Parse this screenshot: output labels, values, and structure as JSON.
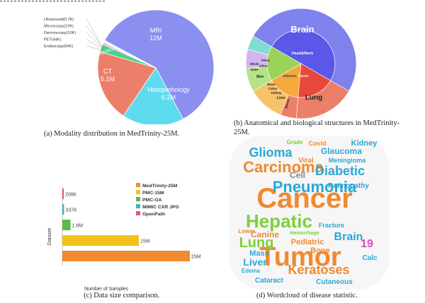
{
  "captions": {
    "a": "(a) Modality distribution in MedTrinity-25M.",
    "b": "(b) Anatomical and biological structures in MedTrinity-25M.",
    "c": "(c) Data size comparison.",
    "d": "(d) Wordcloud of disease statistic."
  },
  "chart_data": [
    {
      "type": "pie",
      "slices": [
        {
          "label": "MRI",
          "value_label": "12M",
          "value": 12.0,
          "color": "#8a8ff0"
        },
        {
          "label": "Histopathology",
          "value_label": "6.2M",
          "value": 6.2,
          "color": "#5fdbf0"
        },
        {
          "label": "CT",
          "value_label": "5.1M",
          "value": 5.1,
          "color": "#ec7f6a"
        },
        {
          "label": "X-Ray(630K)",
          "value_label": "",
          "value": 0.63,
          "color": "#4fcf8f"
        },
        {
          "label": "Endoscopy(64K)",
          "value_label": "",
          "value": 0.064,
          "color": "#c78fe0"
        },
        {
          "label": "PET(44K)",
          "value_label": "",
          "value": 0.044,
          "color": "#f3b06c"
        },
        {
          "label": "Dermoscopy(10K)",
          "value_label": "",
          "value": 0.01,
          "color": "#f6c2d2"
        },
        {
          "label": "Microscopy(10K)",
          "value_label": "",
          "value": 0.01,
          "color": "#d08bd8"
        },
        {
          "label": "Ultrasound(0.7K)",
          "value_label": "",
          "value": 0.0007,
          "color": "#f3ee88"
        }
      ]
    },
    {
      "type": "sunburst",
      "outer": [
        {
          "label": "Brain",
          "color": "#7f82ec"
        },
        {
          "label": "Lung",
          "color": "#ec7f6a"
        },
        {
          "label": "Breast",
          "color": "#ec7f6a"
        },
        {
          "label": "Liver",
          "color": "#f6c36a"
        },
        {
          "label": "Kidney",
          "color": "#f6c36a"
        },
        {
          "label": "Colon",
          "color": "#f6c36a"
        },
        {
          "label": "Bone",
          "color": "#f6c36a"
        },
        {
          "label": "Skin",
          "color": "#b6e38a"
        },
        {
          "label": "Other",
          "color": "#b6e38a"
        },
        {
          "label": "Pelvic",
          "color": "#d3b6f0"
        },
        {
          "label": "Spine",
          "color": "#d3b6f0"
        },
        {
          "label": "Whole",
          "color": "#7fdcd0"
        }
      ],
      "inner": [
        {
          "label": "Head&Neck",
          "color": "#5a58e8"
        },
        {
          "label": "Thorax",
          "color": "#e8483a"
        },
        {
          "label": "Abdomen",
          "color": "#f6a83a"
        }
      ]
    },
    {
      "type": "bar",
      "orientation": "horizontal",
      "ylabel": "Dataset",
      "xlabel": "Number of Samples",
      "categories": [
        "OpenPath",
        "MIMIC CXR JPG",
        "PMC-OA",
        "PMC-15M",
        "MedTrinity-25M"
      ],
      "values": [
        0.208,
        0.337,
        1.6,
        15,
        25
      ],
      "labels": [
        "208K",
        "337K",
        "1.6M",
        "15M",
        "25M"
      ],
      "colors": [
        "#e0606a",
        "#3fb8b0",
        "#5cb84a",
        "#f2c21a",
        "#f0892f"
      ],
      "legend": [
        "MedTrinity-25M",
        "PMC-15M",
        "PMC-OA",
        "MIMIC CXR JPG",
        "OpenPath"
      ],
      "legend_colors": [
        "#f0892f",
        "#f2c21a",
        "#5cb84a",
        "#3fb8b0",
        "#e0606a"
      ]
    }
  ],
  "wordcloud": [
    {
      "t": "Cancer",
      "c": "#f0892f"
    },
    {
      "t": "Tumor",
      "c": "#f0892f"
    },
    {
      "t": "Hepatic",
      "c": "#7fcf3a"
    },
    {
      "t": "Pneumonia",
      "c": "#29a8d8"
    },
    {
      "t": "Carcinoma",
      "c": "#f0892f"
    },
    {
      "t": "Diabetic",
      "c": "#29a8d8"
    },
    {
      "t": "Lung",
      "c": "#7fcf3a"
    },
    {
      "t": "Keratoses",
      "c": "#f0892f"
    },
    {
      "t": "Glioma",
      "c": "#29a8d8"
    },
    {
      "t": "Brain",
      "c": "#29a8d8"
    },
    {
      "t": "Liver",
      "c": "#29a8d8"
    },
    {
      "t": "Cell",
      "c": "#888888"
    },
    {
      "t": "Glaucoma",
      "c": "#29a8d8"
    },
    {
      "t": "Kidney",
      "c": "#29a8d8"
    },
    {
      "t": "Retinopathy",
      "c": "#29a8d8"
    },
    {
      "t": "Meningioma",
      "c": "#29a8d8"
    },
    {
      "t": "Pediatric",
      "c": "#f0892f"
    },
    {
      "t": "Canine",
      "c": "#f0892f"
    },
    {
      "t": "Mass",
      "c": "#29a8d8"
    },
    {
      "t": "Cutaneous",
      "c": "#29a8d8"
    },
    {
      "t": "Cataract",
      "c": "#29a8d8"
    },
    {
      "t": "Fracture",
      "c": "#29a8d8"
    },
    {
      "t": "Covid",
      "c": "#f0892f"
    },
    {
      "t": "Grade",
      "c": "#7fcf3a"
    },
    {
      "t": "Viral",
      "c": "#f0892f"
    },
    {
      "t": "Bone",
      "c": "#f0892f"
    },
    {
      "t": "19",
      "c": "#d84ac0"
    },
    {
      "t": "Calc",
      "c": "#29a8d8"
    },
    {
      "t": "Edema",
      "c": "#29a8d8"
    },
    {
      "t": "Hemorrhage",
      "c": "#7fcf3a"
    },
    {
      "t": "Lower",
      "c": "#f0892f"
    }
  ]
}
